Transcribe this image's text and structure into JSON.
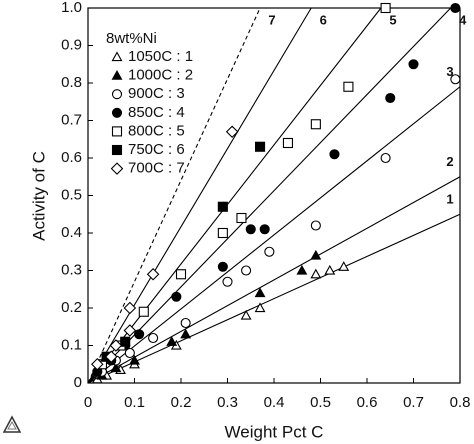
{
  "chart_data": {
    "type": "scatter",
    "xlabel": "Weight Pct C",
    "ylabel": "Activity of C",
    "legend_title": "8wt%Ni",
    "xlim": [
      0,
      0.8
    ],
    "ylim": [
      0,
      1
    ],
    "xticks": [
      0,
      0.1,
      0.2,
      0.3,
      0.4,
      0.5,
      0.6,
      0.7,
      0.8
    ],
    "yticks": [
      0,
      0.1,
      0.2,
      0.3,
      0.4,
      0.5,
      0.6,
      0.7,
      0.8,
      0.9,
      {
        "value": 1,
        "label": "1.0"
      }
    ],
    "series": [
      {
        "name": "1050C : 1",
        "line_label": "1",
        "marker": "triangle-open",
        "color": "#000000",
        "line_style": "solid",
        "x": [
          0.02,
          0.04,
          0.07,
          0.1,
          0.19,
          0.34,
          0.37,
          0.49,
          0.52,
          0.55
        ],
        "values": [
          0.01,
          0.02,
          0.035,
          0.05,
          0.1,
          0.18,
          0.2,
          0.29,
          0.3,
          0.31
        ],
        "fit_x": [
          0,
          0.8
        ],
        "fit_y": [
          0,
          0.45
        ]
      },
      {
        "name": "1000C : 2",
        "line_label": "2",
        "marker": "triangle-filled",
        "color": "#000000",
        "line_style": "solid",
        "x": [
          0.03,
          0.06,
          0.1,
          0.18,
          0.21,
          0.37,
          0.46,
          0.49
        ],
        "values": [
          0.02,
          0.04,
          0.06,
          0.11,
          0.13,
          0.24,
          0.3,
          0.34
        ],
        "fit_x": [
          0,
          0.8
        ],
        "fit_y": [
          0,
          0.55
        ]
      },
      {
        "name": "900C : 3",
        "line_label": "3",
        "marker": "circle-open",
        "color": "#000000",
        "line_style": "solid",
        "x": [
          0.03,
          0.06,
          0.09,
          0.14,
          0.21,
          0.3,
          0.34,
          0.39,
          0.49,
          0.64,
          0.79
        ],
        "values": [
          0.03,
          0.06,
          0.08,
          0.12,
          0.16,
          0.27,
          0.3,
          0.35,
          0.42,
          0.6,
          0.81
        ],
        "fit_x": [
          0,
          0.8
        ],
        "fit_y": [
          0,
          0.79
        ]
      },
      {
        "name": "850C : 4",
        "line_label": "4",
        "marker": "circle-filled",
        "color": "#000000",
        "line_style": "solid",
        "x": [
          0.02,
          0.05,
          0.08,
          0.11,
          0.19,
          0.29,
          0.35,
          0.38,
          0.53,
          0.65,
          0.7,
          0.79
        ],
        "values": [
          0.03,
          0.06,
          0.1,
          0.13,
          0.23,
          0.31,
          0.41,
          0.41,
          0.61,
          0.76,
          0.85,
          1.0
        ],
        "fit_x": [
          0,
          0.78
        ],
        "fit_y": [
          0,
          1
        ]
      },
      {
        "name": "800C : 5",
        "line_label": "5",
        "marker": "square-open",
        "color": "#000000",
        "line_style": "solid",
        "x": [
          0.03,
          0.07,
          0.12,
          0.2,
          0.29,
          0.33,
          0.43,
          0.49,
          0.56,
          0.64
        ],
        "values": [
          0.05,
          0.1,
          0.19,
          0.29,
          0.4,
          0.44,
          0.64,
          0.69,
          0.79,
          1.0
        ],
        "fit_x": [
          0,
          0.63
        ],
        "fit_y": [
          0,
          1
        ]
      },
      {
        "name": "750C : 6",
        "line_label": "6",
        "marker": "square-filled",
        "color": "#000000",
        "line_style": "solid",
        "x": [
          0.04,
          0.08,
          0.29,
          0.37
        ],
        "values": [
          0.07,
          0.11,
          0.47,
          0.63
        ],
        "fit_x": [
          0,
          0.48
        ],
        "fit_y": [
          0,
          1
        ]
      },
      {
        "name": "700C : 7",
        "line_label": "7",
        "marker": "diamond-open",
        "color": "#000000",
        "line_style": "dashed",
        "x": [
          0.02,
          0.05,
          0.06,
          0.09,
          0.09,
          0.14,
          0.31
        ],
        "values": [
          0.05,
          0.07,
          0.1,
          0.14,
          0.2,
          0.29,
          0.67
        ],
        "fit_x": [
          0,
          0.37
        ],
        "fit_y": [
          0,
          1
        ]
      }
    ]
  }
}
